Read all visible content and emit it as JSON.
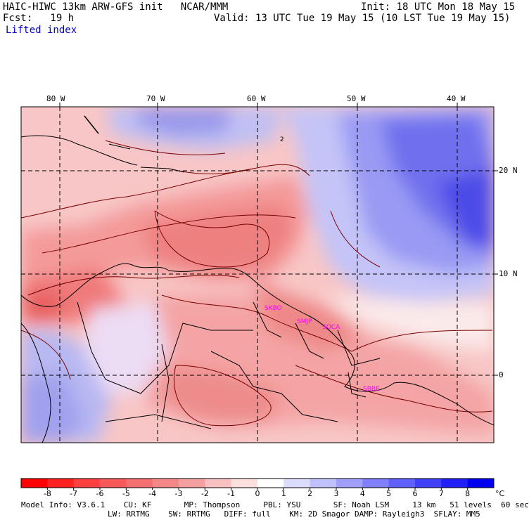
{
  "header": {
    "title": "HAIC-HIWC 13km ARW-GFS init   NCAR/MMM",
    "init": "Init: 18 UTC Mon 18 May 15",
    "fcst": "Fcst:   19 h",
    "valid": "Valid: 13 UTC Tue 19 May 15 (10 LST Tue 19 May 15)",
    "field": "Lifted index"
  },
  "axes": {
    "lon_labels": [
      "80 W",
      "70 W",
      "60 W",
      "50 W",
      "40 W"
    ],
    "lat_labels": [
      "20 N",
      "10 N",
      "0"
    ]
  },
  "stations": [
    "SKBO",
    "SMJP",
    "SOCA",
    "SBBE"
  ],
  "contour_label": "2",
  "colorbar": {
    "ticks": [
      "-8",
      "-7",
      "-6",
      "-5",
      "-4",
      "-3",
      "-2",
      "-1",
      "0",
      "1",
      "2",
      "3",
      "4",
      "5",
      "6",
      "7",
      "8"
    ],
    "unit": "°C",
    "colors": [
      "#ff0000",
      "#ff2020",
      "#ff4040",
      "#f85a5a",
      "#f47070",
      "#f48888",
      "#f4a0a0",
      "#f8c0c0",
      "#fce0e0",
      "#ffffff",
      "#dcdcfc",
      "#c0c0fc",
      "#a0a0fc",
      "#8080fc",
      "#6060fc",
      "#4040f8",
      "#2020f4",
      "#0000f0"
    ]
  },
  "footer": {
    "line1": "Model Info: V3.6.1    CU: KF       MP: Thompson     PBL: YSU       SF: Noah LSM     13 km   51 levels  60 sec",
    "line2": "LW: RRTMG    SW: RRTMG   DIFF: full    KM: 2D Smagor DAMP: Rayleigh3  SFLAY: MM5"
  }
}
